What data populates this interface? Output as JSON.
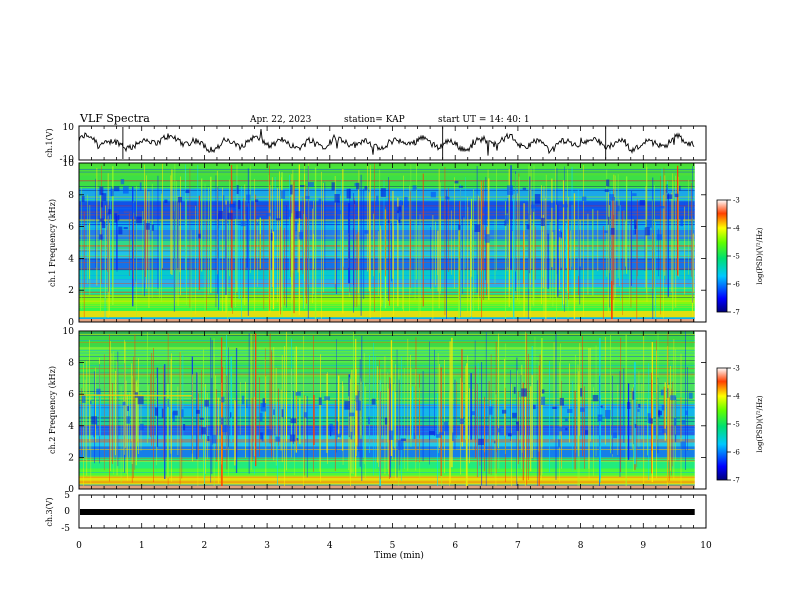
{
  "header": {
    "title": "VLF Spectra",
    "date": "Apr. 22, 2023",
    "station": "station= KAP",
    "start": "start  UT =   14: 40: 1"
  },
  "chart_data": [
    {
      "type": "line",
      "panel": "ch1-waveform",
      "ylabel": "ch.1(V)",
      "ylim": [
        -10,
        10
      ],
      "yticks": [
        "10",
        "-10"
      ],
      "xlim": [
        0,
        10
      ],
      "x_end": 9.82,
      "mean_level": 0
    },
    {
      "type": "heatmap",
      "panel": "ch1-spectrogram",
      "ylabel": "ch.1  Frequency (kHz)",
      "ylim": [
        0,
        10
      ],
      "yticks": [
        "0",
        "2",
        "4",
        "6",
        "8",
        "10"
      ],
      "xlim": [
        0,
        10
      ],
      "x_end": 9.82,
      "colorbar": {
        "label": "log(PSD)(V²/Hz)",
        "range": [
          -7,
          -3
        ],
        "ticks": [
          "-3",
          "-4",
          "-5",
          "-6",
          "-7"
        ]
      }
    },
    {
      "type": "heatmap",
      "panel": "ch2-spectrogram",
      "ylabel": "ch.2  Frequency (kHz)",
      "ylim": [
        0,
        10
      ],
      "yticks": [
        "0",
        "2",
        "4",
        "6",
        "8",
        "10"
      ],
      "xlim": [
        0,
        10
      ],
      "x_end": 9.82,
      "colorbar": {
        "label": "log(PSD)(V²/Hz)",
        "range": [
          -7,
          -3
        ],
        "ticks": [
          "-3",
          "-4",
          "-5",
          "-6",
          "-7"
        ]
      }
    },
    {
      "type": "line",
      "panel": "ch3-waveform",
      "ylabel": "ch.3(V)",
      "ylim": [
        -5,
        5
      ],
      "yticks": [
        "5",
        "0",
        "-5"
      ],
      "xlim": [
        0,
        10
      ],
      "x_end": 9.82,
      "level": 0,
      "xlabel": "Time  (min)",
      "xticks": [
        "0",
        "1",
        "2",
        "3",
        "4",
        "5",
        "6",
        "7",
        "8",
        "9",
        "10"
      ]
    }
  ]
}
